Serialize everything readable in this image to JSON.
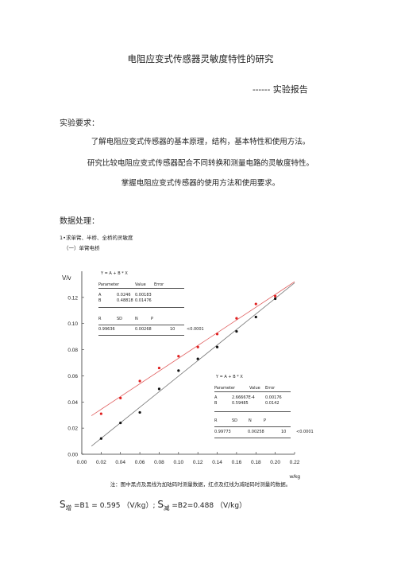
{
  "title": "电阻应变式传感器灵敏度特性的研究",
  "subtitle": "------ 实验报告",
  "requirements": {
    "heading": "实验要求：",
    "items": [
      "了解电阻应变式传感器的基本原理，结构，基本特性和使用方法。",
      "研究比较电阻应变式传感器配合不同转换和测量电路的灵敏度特性。",
      "掌握电阻应变式传感器的使用方法和使用要求。"
    ]
  },
  "data_section": {
    "heading": "数据处理：",
    "line1": "1•求单臂、半桥、全桥的灵敏度",
    "line2": "（一）单臂电桥"
  },
  "fit_box_top": {
    "eq": "Y = A + B * X",
    "header": [
      "Parameter",
      "Value",
      "Error"
    ],
    "rows": [
      [
        "A",
        "0.0246",
        "0.00183"
      ],
      [
        "B",
        "0.48818",
        "0.01476"
      ]
    ],
    "stat_header": [
      "R",
      "SD",
      "N",
      "P"
    ],
    "stat_row": [
      "0.99636",
      "0.00268",
      "10",
      "<0.0001"
    ]
  },
  "fit_box_bottom": {
    "eq": "Y = A + B * X",
    "header": [
      "Parameter",
      "Value",
      "Error"
    ],
    "rows": [
      [
        "A",
        "2.66667E-4",
        "0.00176"
      ],
      [
        "B",
        "0.59485",
        "0.0142"
      ]
    ],
    "stat_header": [
      "R",
      "SD",
      "N",
      "P"
    ],
    "stat_row": [
      "0.99773",
      "0.00258",
      "10",
      "<0.0001"
    ]
  },
  "chart_data": {
    "type": "scatter",
    "xlabel": "w/kg",
    "ylabel": "V/v",
    "xlim": [
      0.0,
      0.22
    ],
    "ylim": [
      0.0,
      0.14
    ],
    "x_ticks": [
      "0.00",
      "0.02",
      "0.04",
      "0.06",
      "0.08",
      "0.10",
      "0.12",
      "0.14",
      "0.16",
      "0.18",
      "0.20",
      "0.22"
    ],
    "y_ticks": [
      "0.00",
      "0.02",
      "0.04",
      "0.06",
      "0.08",
      "0.10",
      "0.12"
    ],
    "series": [
      {
        "color": "#e02020",
        "x": [
          0.02,
          0.04,
          0.06,
          0.08,
          0.1,
          0.12,
          0.14,
          0.16,
          0.18,
          0.2
        ],
        "y": [
          0.031,
          0.043,
          0.056,
          0.066,
          0.075,
          0.082,
          0.092,
          0.104,
          0.115,
          0.121
        ],
        "fit": [
          0.0246,
          0.48818
        ]
      },
      {
        "color": "#111111",
        "x": [
          0.02,
          0.04,
          0.06,
          0.08,
          0.1,
          0.12,
          0.14,
          0.16,
          0.18,
          0.2
        ],
        "y": [
          0.012,
          0.024,
          0.032,
          0.05,
          0.064,
          0.073,
          0.082,
          0.094,
          0.105,
          0.119
        ],
        "fit": [
          0.000267,
          0.59485
        ]
      }
    ]
  },
  "caption": "注：图中黑点及黑线为加砝码时测量数据，红点及红线为减砝码时测量的数据。",
  "result": {
    "s1": "S",
    "s1_sub": "增",
    "s1_text": "=B1 = 0.595 （V/kg）;",
    "s2": "S",
    "s2_sub": "减",
    "s2_text": "=B2=0.488 （V/kg）"
  }
}
